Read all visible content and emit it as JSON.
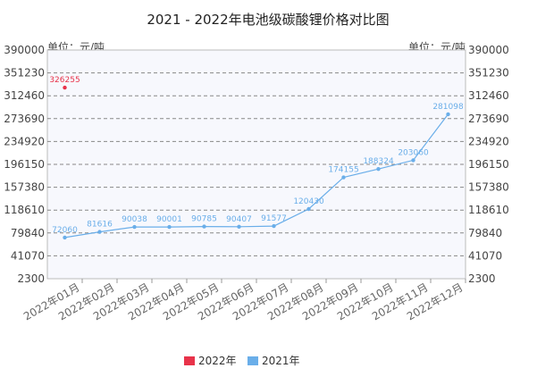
{
  "chart_data": {
    "type": "line",
    "title": "2021 - 2022年电池级碳酸锂价格对比图",
    "unit_left": "单位：元/吨",
    "unit_right": "单位：元/吨",
    "categories": [
      "2022年01月",
      "2022年02月",
      "2022年03月",
      "2022年04月",
      "2022年05月",
      "2022年06月",
      "2022年07月",
      "2022年08月",
      "2022年09月",
      "2022年10月",
      "2022年11月",
      "2022年12月"
    ],
    "yticks": [
      2300,
      41070,
      79840,
      118610,
      157380,
      196150,
      234920,
      273690,
      312460,
      351230,
      390000
    ],
    "ylim": [
      2300,
      390000
    ],
    "grid": true,
    "legend_position": "bottom-center",
    "series": [
      {
        "name": "2022年",
        "color": "#e8334a",
        "values": [
          326255,
          null,
          null,
          null,
          null,
          null,
          null,
          null,
          null,
          null,
          null,
          null
        ]
      },
      {
        "name": "2021年",
        "color": "#6aaee9",
        "values": [
          72060,
          81616,
          90038,
          90001,
          90785,
          90407,
          91577,
          120430,
          174155,
          188324,
          203060,
          281098
        ]
      }
    ]
  }
}
